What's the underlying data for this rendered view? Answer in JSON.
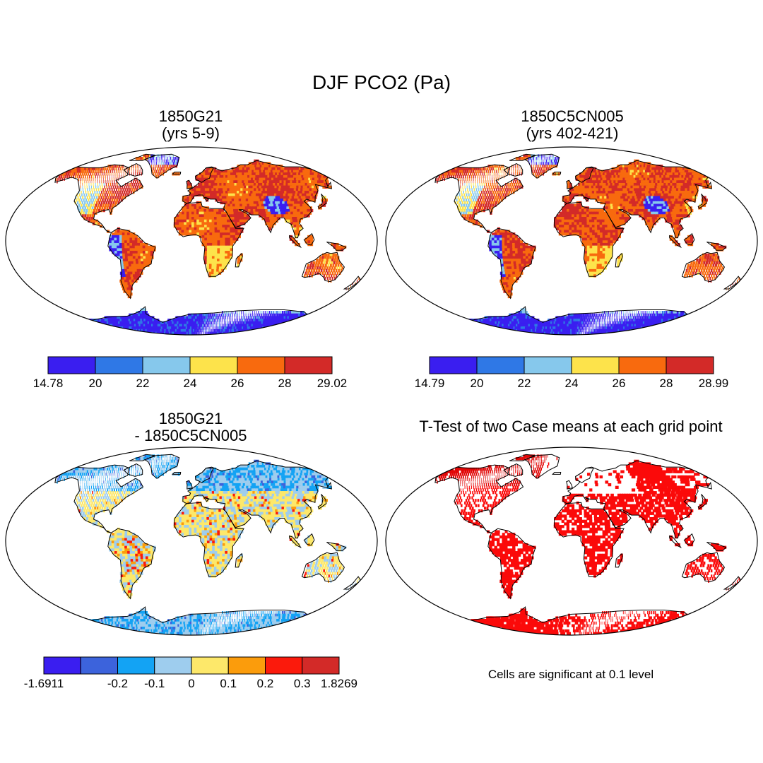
{
  "figure": {
    "title": "DJF PCO2 (Pa)"
  },
  "panels": [
    {
      "id": "p1",
      "title_line1": "1850G21",
      "title_line2": "(yrs 5-9)",
      "fill": "abs"
    },
    {
      "id": "p2",
      "title_line1": "1850C5CN005",
      "title_line2": "(yrs 402-421)",
      "fill": "abs2"
    },
    {
      "id": "p3",
      "title_line1": "1850G21",
      "title_line2": "- 1850C5CN005",
      "fill": "diff"
    },
    {
      "id": "p4",
      "title_line1": "T-Test of two Case means at each grid point",
      "title_line2": "",
      "fill": "sig",
      "note": "Cells are significant at 0.1 level"
    }
  ],
  "colorbars": [
    {
      "id": "cb1",
      "labels": [
        "14.78",
        "20",
        "22",
        "24",
        "26",
        "28",
        "29.02"
      ],
      "colors": [
        "#3a1ef0",
        "#2f78e6",
        "#86c8ec",
        "#fde34b",
        "#f86a0e",
        "#d32a28"
      ]
    },
    {
      "id": "cb2",
      "labels": [
        "14.79",
        "20",
        "22",
        "24",
        "26",
        "28",
        "28.99"
      ],
      "colors": [
        "#3a1ef0",
        "#2f78e6",
        "#86c8ec",
        "#fde34b",
        "#f86a0e",
        "#d32a28"
      ]
    },
    {
      "id": "cb3",
      "labels": [
        "-1.6911",
        "",
        "-0.2",
        "-0.1",
        "0",
        "0.1",
        "0.2",
        "0.3",
        "1.8269"
      ],
      "colors": [
        "#3a1ef0",
        "#3c63dc",
        "#13a3f4",
        "#9ecdee",
        "#fde86a",
        "#fb9c0c",
        "#fb1a0c",
        "#d32a28"
      ]
    }
  ]
}
